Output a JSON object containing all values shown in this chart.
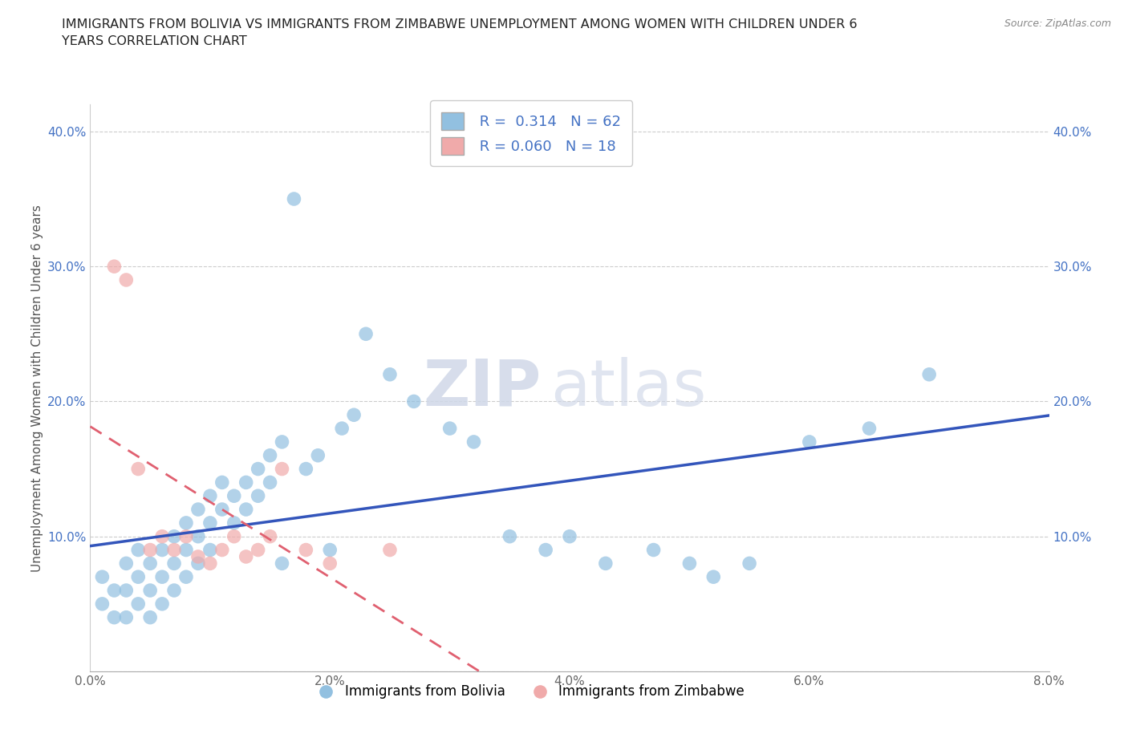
{
  "title": "IMMIGRANTS FROM BOLIVIA VS IMMIGRANTS FROM ZIMBABWE UNEMPLOYMENT AMONG WOMEN WITH CHILDREN UNDER 6\nYEARS CORRELATION CHART",
  "source": "Source: ZipAtlas.com",
  "ylabel": "Unemployment Among Women with Children Under 6 years",
  "xlim": [
    0.0,
    0.08
  ],
  "ylim": [
    0.0,
    0.42
  ],
  "xticks": [
    0.0,
    0.02,
    0.04,
    0.06,
    0.08
  ],
  "xticklabels": [
    "0.0%",
    "2.0%",
    "4.0%",
    "6.0%",
    "8.0%"
  ],
  "yticks": [
    0.0,
    0.1,
    0.2,
    0.3,
    0.4
  ],
  "yticklabels": [
    "",
    "10.0%",
    "20.0%",
    "30.0%",
    "40.0%"
  ],
  "bolivia_color": "#92c0e0",
  "zimbabwe_color": "#f0aaaa",
  "bolivia_line_color": "#3355bb",
  "zimbabwe_line_color": "#e06070",
  "background_color": "#ffffff",
  "watermark_zip": "ZIP",
  "watermark_atlas": "atlas",
  "legend_R_bolivia": "0.314",
  "legend_N_bolivia": "62",
  "legend_R_zimbabwe": "0.060",
  "legend_N_zimbabwe": "18",
  "bolivia_scatter_x": [
    0.001,
    0.001,
    0.002,
    0.002,
    0.003,
    0.003,
    0.003,
    0.004,
    0.004,
    0.004,
    0.005,
    0.005,
    0.005,
    0.006,
    0.006,
    0.006,
    0.007,
    0.007,
    0.007,
    0.008,
    0.008,
    0.008,
    0.009,
    0.009,
    0.009,
    0.01,
    0.01,
    0.01,
    0.011,
    0.011,
    0.012,
    0.012,
    0.013,
    0.013,
    0.014,
    0.014,
    0.015,
    0.015,
    0.016,
    0.016,
    0.017,
    0.018,
    0.019,
    0.02,
    0.021,
    0.022,
    0.023,
    0.025,
    0.027,
    0.03,
    0.032,
    0.035,
    0.038,
    0.04,
    0.043,
    0.047,
    0.05,
    0.052,
    0.055,
    0.06,
    0.065,
    0.07
  ],
  "bolivia_scatter_y": [
    0.07,
    0.05,
    0.06,
    0.04,
    0.08,
    0.06,
    0.04,
    0.07,
    0.05,
    0.09,
    0.08,
    0.06,
    0.04,
    0.09,
    0.07,
    0.05,
    0.1,
    0.08,
    0.06,
    0.11,
    0.09,
    0.07,
    0.12,
    0.1,
    0.08,
    0.13,
    0.11,
    0.09,
    0.14,
    0.12,
    0.13,
    0.11,
    0.14,
    0.12,
    0.15,
    0.13,
    0.16,
    0.14,
    0.17,
    0.08,
    0.35,
    0.15,
    0.16,
    0.09,
    0.18,
    0.19,
    0.25,
    0.22,
    0.2,
    0.18,
    0.17,
    0.1,
    0.09,
    0.1,
    0.08,
    0.09,
    0.08,
    0.07,
    0.08,
    0.17,
    0.18,
    0.22
  ],
  "zimbabwe_scatter_x": [
    0.002,
    0.003,
    0.004,
    0.005,
    0.006,
    0.007,
    0.008,
    0.009,
    0.01,
    0.011,
    0.012,
    0.013,
    0.014,
    0.015,
    0.016,
    0.018,
    0.02,
    0.025
  ],
  "zimbabwe_scatter_y": [
    0.3,
    0.29,
    0.15,
    0.09,
    0.1,
    0.09,
    0.1,
    0.085,
    0.08,
    0.09,
    0.1,
    0.085,
    0.09,
    0.1,
    0.15,
    0.09,
    0.08,
    0.09
  ]
}
